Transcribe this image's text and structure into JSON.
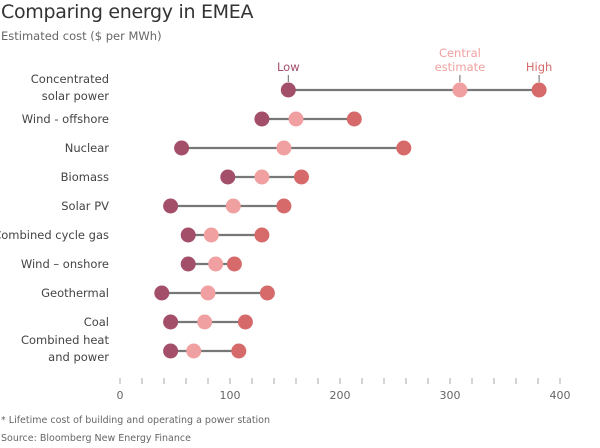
{
  "title": "Comparing energy in EMEA",
  "subtitle": "Estimated cost ($ per MWh)",
  "footnote": "* Lifetime cost of building and operating a power station",
  "source": "Source: Bloomberg New Energy Finance",
  "colors": {
    "low": "#a44f6a",
    "central": "#f0a0a0",
    "high": "#d66a6a",
    "line": "#777777"
  },
  "chart_data": {
    "type": "dumbbell",
    "xlim": [
      0,
      400
    ],
    "x_ticks": [
      0,
      100,
      200,
      300,
      400
    ],
    "x_minor_step": 20,
    "grid": false,
    "legend": {
      "low": "Low",
      "central": "Central estimate",
      "high": "High",
      "placement": "top, annotating first row"
    },
    "categories": [
      {
        "label": [
          "Concentrated",
          "solar power"
        ],
        "low": 153,
        "central": 309,
        "high": 381
      },
      {
        "label": [
          "Wind - offshore"
        ],
        "low": 129,
        "central": 160,
        "high": 213
      },
      {
        "label": [
          "Nuclear"
        ],
        "low": 56,
        "central": 149,
        "high": 258
      },
      {
        "label": [
          "Biomass"
        ],
        "low": 98,
        "central": 129,
        "high": 165
      },
      {
        "label": [
          "Solar PV"
        ],
        "low": 46,
        "central": 103,
        "high": 149
      },
      {
        "label": [
          "Combined cycle gas"
        ],
        "low": 62,
        "central": 83,
        "high": 129
      },
      {
        "label": [
          "Wind – onshore"
        ],
        "low": 62,
        "central": 87,
        "high": 104
      },
      {
        "label": [
          "Geothermal"
        ],
        "low": 38,
        "central": 80,
        "high": 134
      },
      {
        "label": [
          "Coal"
        ],
        "low": 46,
        "central": 77,
        "high": 114
      },
      {
        "label": [
          "Combined heat",
          "and power"
        ],
        "low": 46,
        "central": 67,
        "high": 108
      }
    ]
  }
}
